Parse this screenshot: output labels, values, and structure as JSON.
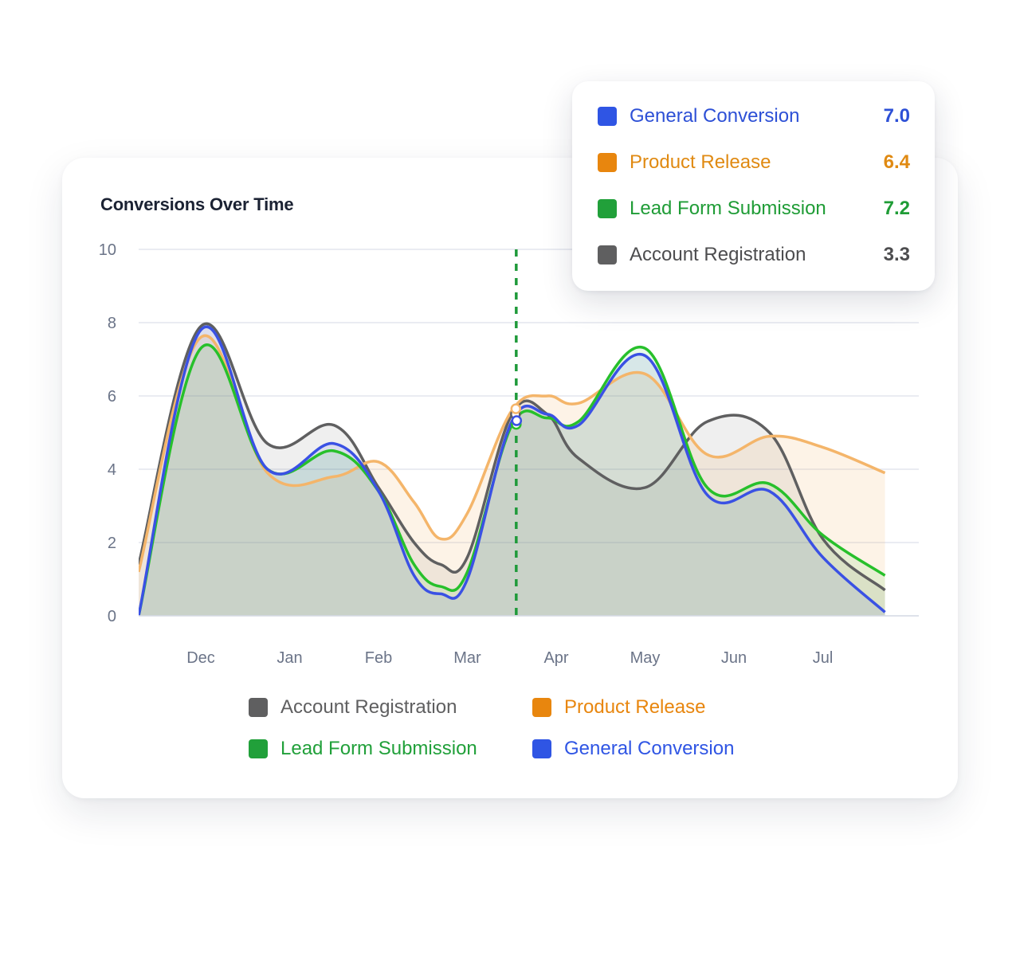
{
  "chart_data": {
    "type": "area",
    "title": "Conversions Over Time",
    "xlabel": "",
    "ylabel": "",
    "ylim": [
      0,
      10
    ],
    "yticks": [
      "0",
      "2",
      "4",
      "6",
      "8",
      "10"
    ],
    "categories": [
      "Dec",
      "Jan",
      "Feb",
      "Mar",
      "Apr",
      "May",
      "Jun",
      "Jul"
    ],
    "x": [
      -0.7,
      0.0,
      0.75,
      1.5,
      2.0,
      2.4,
      2.7,
      3.0,
      3.5,
      3.9,
      4.25,
      5.0,
      5.7,
      6.4,
      7.0,
      7.7
    ],
    "grid": true,
    "legend_position": "bottom",
    "highlight_x": 3.55,
    "series": [
      {
        "name": "Account Registration",
        "color": "#5f5f60",
        "values": [
          1.4,
          7.9,
          4.7,
          5.2,
          3.5,
          2.0,
          1.4,
          1.6,
          5.5,
          5.5,
          4.3,
          3.5,
          5.3,
          5.0,
          2.1,
          0.7
        ]
      },
      {
        "name": "Product Release",
        "color": "#f4b56a",
        "values": [
          1.2,
          7.6,
          3.9,
          3.8,
          4.2,
          3.1,
          2.1,
          2.8,
          5.6,
          6.0,
          5.8,
          6.6,
          4.4,
          4.9,
          4.6,
          3.9
        ]
      },
      {
        "name": "Lead Form Submission",
        "color": "#27c02b",
        "values": [
          0.0,
          7.3,
          4.0,
          4.5,
          3.4,
          1.4,
          0.8,
          1.2,
          5.2,
          5.4,
          5.3,
          7.3,
          3.5,
          3.6,
          2.2,
          1.1
        ]
      },
      {
        "name": "General Conversion",
        "color": "#3a51e4",
        "values": [
          0.0,
          7.8,
          4.0,
          4.7,
          3.4,
          1.1,
          0.6,
          1.0,
          5.3,
          5.5,
          5.2,
          7.1,
          3.3,
          3.4,
          1.6,
          0.1
        ]
      }
    ]
  },
  "legend": [
    {
      "label": "Account Registration",
      "color": "#5f5f60"
    },
    {
      "label": "Product Release",
      "color": "#e8860e"
    },
    {
      "label": "Lead Form Submission",
      "color": "#21a03a"
    },
    {
      "label": "General Conversion",
      "color": "#2f55e4"
    }
  ],
  "tooltip": {
    "rows": [
      {
        "label": "General Conversion",
        "value": "7.0",
        "color": "#2f55e4",
        "text_color": "#2d50d6"
      },
      {
        "label": "Product Release",
        "value": "6.4",
        "color": "#e8860e",
        "text_color": "#e08a12"
      },
      {
        "label": "Lead Form Submission",
        "value": "7.2",
        "color": "#21a03a",
        "text_color": "#1f9c36"
      },
      {
        "label": "Account Registration",
        "value": "3.3",
        "color": "#5f5f60",
        "text_color": "#4d4d4f"
      }
    ]
  }
}
